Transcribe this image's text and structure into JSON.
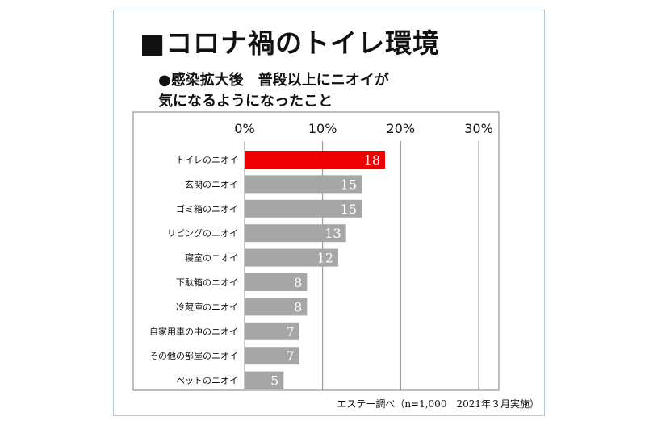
{
  "title": "■コロナ禍のトイレ環境",
  "subtitle": "●感染拡大後　普段以上にニオイが\n気になるようになったこと",
  "credit": "エステー調べ（n=1,000　2021年３月実施）",
  "colors": {
    "highlight": "#ee0000",
    "bar": "#a6a6a6",
    "grid": "#8c8c8c",
    "label_on_bar": "#ffffff"
  },
  "chart_data": {
    "type": "bar",
    "orientation": "horizontal",
    "categories": [
      "トイレのニオイ",
      "玄関のニオイ",
      "ゴミ箱のニオイ",
      "リビングのニオイ",
      "寝室のニオイ",
      "下駄箱のニオイ",
      "冷蔵庫のニオイ",
      "自家用車の中のニオイ",
      "その他の部屋のニオイ",
      "ペットのニオイ"
    ],
    "values": [
      18,
      15,
      15,
      13,
      12,
      8,
      8,
      7,
      7,
      5
    ],
    "data_labels": [
      "18",
      "15",
      "15",
      "13",
      "12",
      "8",
      "8",
      "7",
      "7",
      "5"
    ],
    "xlim": [
      0,
      30
    ],
    "ticks": [
      0,
      10,
      20,
      30
    ],
    "tick_labels": [
      "0%",
      "10%",
      "20%",
      "30%"
    ],
    "highlight_index": 0,
    "grid": true
  }
}
